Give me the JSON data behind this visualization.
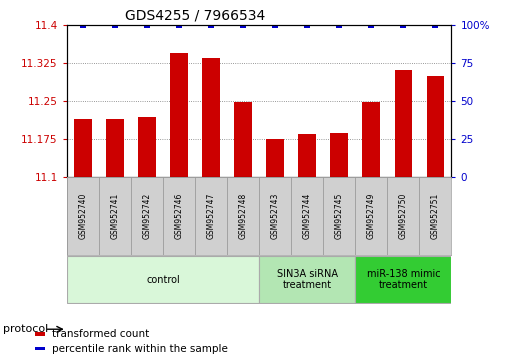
{
  "title": "GDS4255 / 7966534",
  "samples": [
    "GSM952740",
    "GSM952741",
    "GSM952742",
    "GSM952746",
    "GSM952747",
    "GSM952748",
    "GSM952743",
    "GSM952744",
    "GSM952745",
    "GSM952749",
    "GSM952750",
    "GSM952751"
  ],
  "bar_values": [
    11.215,
    11.215,
    11.218,
    11.345,
    11.335,
    11.247,
    11.175,
    11.185,
    11.187,
    11.247,
    11.31,
    11.3
  ],
  "percentile_values": [
    100,
    100,
    100,
    100,
    100,
    100,
    100,
    100,
    100,
    100,
    100,
    100
  ],
  "bar_color": "#cc0000",
  "percentile_color": "#0000cc",
  "ylim_left": [
    11.1,
    11.4
  ],
  "ylim_right": [
    0,
    100
  ],
  "yticks_left": [
    11.1,
    11.175,
    11.25,
    11.325,
    11.4
  ],
  "yticks_right": [
    0,
    25,
    50,
    75,
    100
  ],
  "ytick_labels_left": [
    "11.1",
    "11.175",
    "11.25",
    "11.325",
    "11.4"
  ],
  "ytick_labels_right": [
    "0",
    "25",
    "50",
    "75",
    "100%"
  ],
  "groups": [
    {
      "label": "control",
      "start": 0,
      "end": 6,
      "color": "#d9f7d9",
      "edge_color": "#aaaaaa"
    },
    {
      "label": "SIN3A siRNA\ntreatment",
      "start": 6,
      "end": 9,
      "color": "#b3e6b3",
      "edge_color": "#aaaaaa"
    },
    {
      "label": "miR-138 mimic\ntreatment",
      "start": 9,
      "end": 12,
      "color": "#33cc33",
      "edge_color": "#aaaaaa"
    }
  ],
  "protocol_label": "protocol",
  "legend_items": [
    {
      "label": "transformed count",
      "color": "#cc0000"
    },
    {
      "label": "percentile rank within the sample",
      "color": "#0000cc"
    }
  ],
  "bar_width": 0.55,
  "background_color": "#ffffff",
  "grid_color": "#777777",
  "title_fontsize": 10,
  "tick_fontsize": 7.5,
  "label_fontsize": 7.5,
  "sample_label_fontsize": 5.5,
  "group_label_fontsize": 7
}
